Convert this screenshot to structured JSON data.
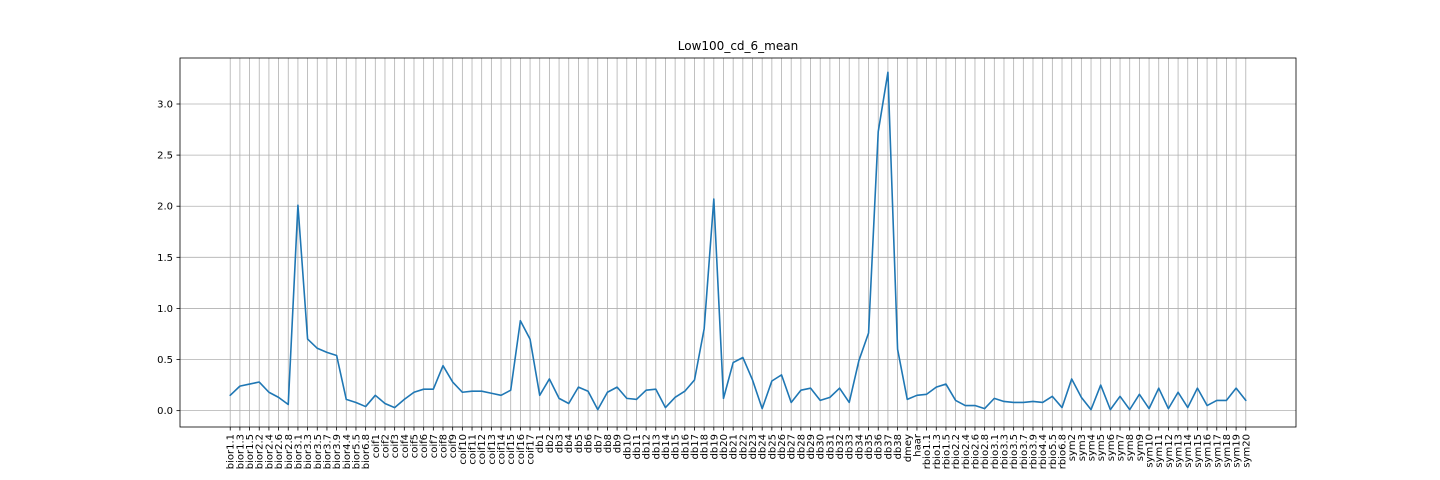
{
  "chart_data": {
    "type": "line",
    "title": "Low100_cd_6_mean",
    "xlabel": "",
    "ylabel": "",
    "ylim": [
      -0.16,
      3.45
    ],
    "yticks": [
      0.0,
      0.5,
      1.0,
      1.5,
      2.0,
      2.5,
      3.0
    ],
    "ytick_labels": [
      "0.0",
      "0.5",
      "1.0",
      "1.5",
      "2.0",
      "2.5",
      "3.0"
    ],
    "grid": true,
    "line_color": "#1f77b4",
    "categories": [
      "bior1.1",
      "bior1.3",
      "bior1.5",
      "bior2.2",
      "bior2.4",
      "bior2.6",
      "bior2.8",
      "bior3.1",
      "bior3.3",
      "bior3.5",
      "bior3.7",
      "bior3.9",
      "bior4.4",
      "bior5.5",
      "bior6.8",
      "coif1",
      "coif2",
      "coif3",
      "coif4",
      "coif5",
      "coif6",
      "coif7",
      "coif8",
      "coif9",
      "coif10",
      "coif11",
      "coif12",
      "coif13",
      "coif14",
      "coif15",
      "coif16",
      "coif17",
      "db1",
      "db2",
      "db3",
      "db4",
      "db5",
      "db6",
      "db7",
      "db8",
      "db9",
      "db10",
      "db11",
      "db12",
      "db13",
      "db14",
      "db15",
      "db16",
      "db17",
      "db18",
      "db19",
      "db20",
      "db21",
      "db22",
      "db23",
      "db24",
      "db25",
      "db26",
      "db27",
      "db28",
      "db29",
      "db30",
      "db31",
      "db32",
      "db33",
      "db34",
      "db35",
      "db36",
      "db37",
      "db38",
      "dmey",
      "haar",
      "rbio1.1",
      "rbio1.3",
      "rbio1.5",
      "rbio2.2",
      "rbio2.4",
      "rbio2.6",
      "rbio2.8",
      "rbio3.1",
      "rbio3.3",
      "rbio3.5",
      "rbio3.7",
      "rbio3.9",
      "rbio4.4",
      "rbio5.5",
      "rbio6.8",
      "sym2",
      "sym3",
      "sym4",
      "sym5",
      "sym6",
      "sym7",
      "sym8",
      "sym9",
      "sym10",
      "sym11",
      "sym12",
      "sym13",
      "sym14",
      "sym15",
      "sym16",
      "sym17",
      "sym18",
      "sym19",
      "sym20"
    ],
    "series": [
      {
        "values": [
          0.15,
          0.24,
          0.26,
          0.28,
          0.18,
          0.13,
          0.06,
          2.01,
          0.7,
          0.61,
          0.57,
          0.54,
          0.11,
          0.08,
          0.04,
          0.15,
          0.07,
          0.03,
          0.11,
          0.18,
          0.21,
          0.21,
          0.44,
          0.28,
          0.18,
          0.19,
          0.19,
          0.17,
          0.15,
          0.2,
          0.88,
          0.7,
          0.15,
          0.31,
          0.12,
          0.07,
          0.23,
          0.19,
          0.01,
          0.18,
          0.23,
          0.12,
          0.11,
          0.2,
          0.21,
          0.03,
          0.13,
          0.19,
          0.3,
          0.8,
          2.07,
          0.12,
          0.47,
          0.52,
          0.3,
          0.02,
          0.29,
          0.35,
          0.08,
          0.2,
          0.22,
          0.1,
          0.13,
          0.22,
          0.08,
          0.49,
          0.76,
          2.73,
          3.31,
          0.6,
          0.11,
          0.15,
          0.16,
          0.23,
          0.26,
          0.1,
          0.05,
          0.05,
          0.02,
          0.12,
          0.09,
          0.08,
          0.08,
          0.09,
          0.08,
          0.14,
          0.03,
          0.31,
          0.13,
          0.01,
          0.25,
          0.01,
          0.14,
          0.01,
          0.16,
          0.02,
          0.22,
          0.02,
          0.18,
          0.03,
          0.22,
          0.05,
          0.1,
          0.1,
          0.22,
          0.1
        ]
      }
    ]
  }
}
